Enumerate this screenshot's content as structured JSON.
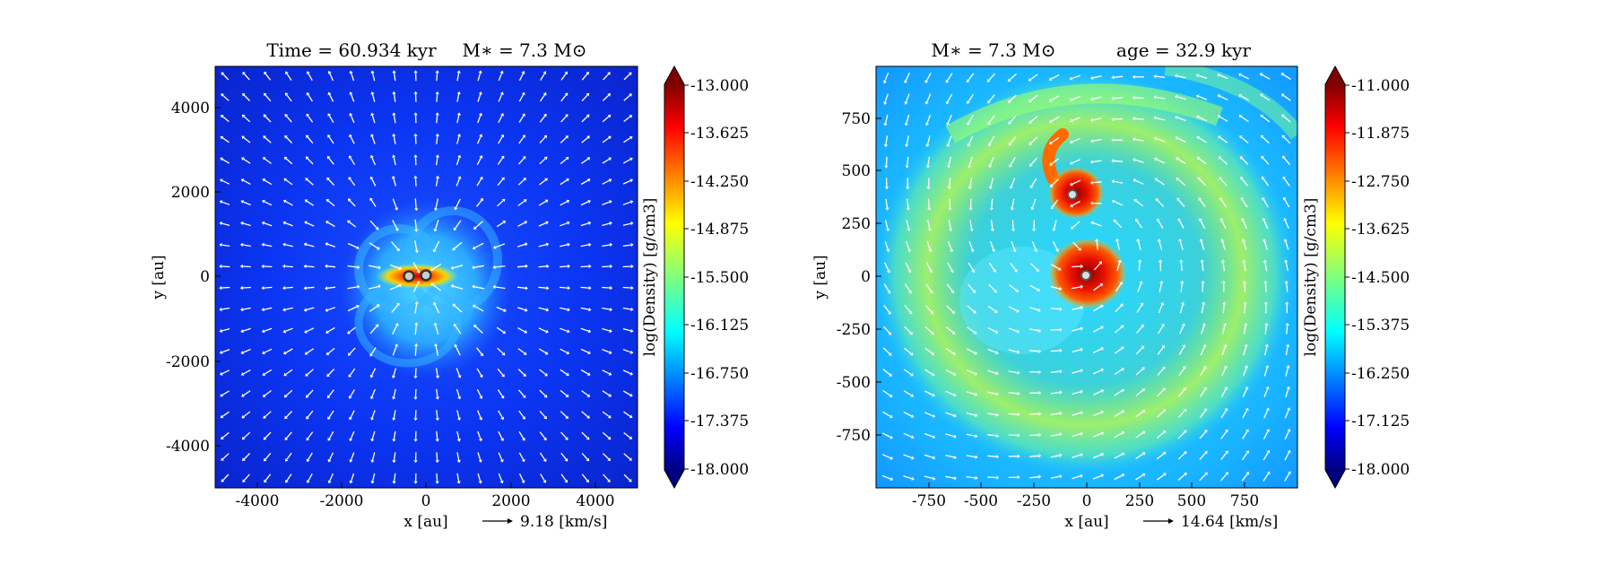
{
  "panels": [
    {
      "id": "left",
      "title_left": "Time = 60.934 kyr",
      "title_right": "M∗ = 7.3 M⊙",
      "xlabel": "x [au]",
      "ylabel": "y [au]",
      "xticks": [
        "-4000",
        "-2000",
        "0",
        "2000",
        "4000"
      ],
      "yticks": [
        "4000",
        "2000",
        "0",
        "-2000",
        "-4000"
      ],
      "xlim": [
        -5000,
        5000
      ],
      "ylim": [
        -5000,
        5000
      ],
      "velocity_key": "9.18 [km/s]",
      "colorbar_label": "log(Density) [g/cm3]",
      "colorbar_ticks": [
        "-13.000",
        "-13.625",
        "-14.250",
        "-14.875",
        "-15.500",
        "-16.125",
        "-16.750",
        "-17.375",
        "-18.000"
      ],
      "colorbar_range": [
        -18.0,
        -13.0
      ]
    },
    {
      "id": "right",
      "title_left": "M∗ = 7.3 M⊙",
      "title_right": "age = 32.9 kyr",
      "xlabel": "x [au]",
      "ylabel": "y [au]",
      "xticks": [
        "-750",
        "-500",
        "-250",
        "0",
        "250",
        "500",
        "750"
      ],
      "yticks": [
        "750",
        "500",
        "250",
        "0",
        "-250",
        "-500",
        "-750"
      ],
      "xlim": [
        -1000,
        1000
      ],
      "ylim": [
        -1000,
        1000
      ],
      "velocity_key": "14.64 [km/s]",
      "colorbar_label": "log(Density) [g/cm3]",
      "colorbar_ticks": [
        "-11.000",
        "-11.875",
        "-12.750",
        "-13.625",
        "-14.500",
        "-15.375",
        "-16.250",
        "-17.125",
        "-18.000"
      ],
      "colorbar_range": [
        -18.0,
        -11.0
      ]
    }
  ],
  "colors": {
    "jet": [
      "#00007f",
      "#0000ff",
      "#007fff",
      "#00ffff",
      "#7fff7f",
      "#ffff00",
      "#ff7f00",
      "#ff0000",
      "#7f0000"
    ]
  }
}
